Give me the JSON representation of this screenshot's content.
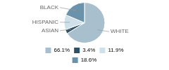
{
  "chart_data": {
    "type": "pie",
    "categories": [
      "WHITE",
      "ASIAN",
      "HISPANIC",
      "BLACK"
    ],
    "values": [
      66.1,
      3.4,
      11.9,
      18.6
    ],
    "value_labels": [
      "66.1%",
      "3.4%",
      "11.9%",
      "18.6%"
    ],
    "colors": [
      "#a8bfce",
      "#2e5068",
      "#d0e0ea",
      "#6a92aa"
    ],
    "legend": "bottom"
  }
}
